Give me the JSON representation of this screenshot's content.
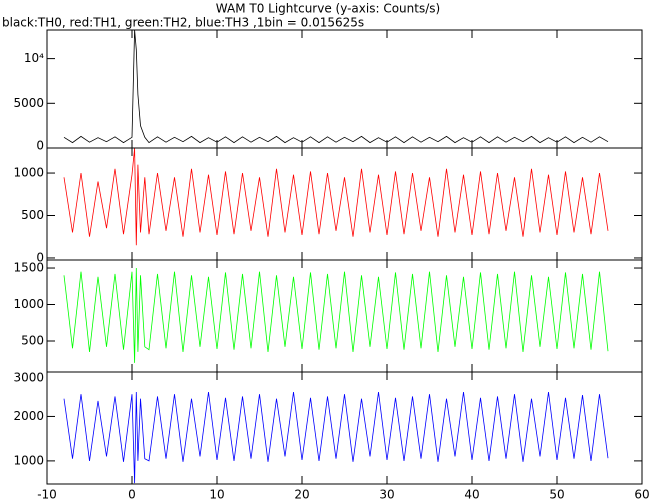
{
  "chart_data": {
    "type": "line",
    "title": "WAM T0 Lightcurve (y-axis: Counts/s)",
    "subtitle": "black:TH0, red:TH1, green:TH2, blue:TH3 ,1bin = 0.015625s",
    "xlim": [
      -10,
      60
    ],
    "xticks": [
      -10,
      0,
      10,
      20,
      30,
      40,
      50,
      60
    ],
    "x": [
      -8,
      -7,
      -6,
      -5,
      -4,
      -3,
      -2,
      -1,
      0,
      0.3,
      0.5,
      0.7,
      1,
      1.5,
      2,
      3,
      4,
      5,
      6,
      7,
      8,
      9,
      10,
      11,
      12,
      13,
      14,
      15,
      16,
      17,
      18,
      19,
      20,
      21,
      22,
      23,
      24,
      25,
      26,
      27,
      28,
      29,
      30,
      31,
      32,
      33,
      34,
      35,
      36,
      37,
      38,
      39,
      40,
      41,
      42,
      43,
      44,
      45,
      46,
      47,
      48,
      49,
      50,
      51,
      52,
      53,
      54,
      55,
      56
    ],
    "series": [
      {
        "color": "#000000",
        "ylim": [
          0,
          13200
        ],
        "yticks": [
          0,
          5000,
          {
            "value": 10000,
            "label": "10⁴"
          }
        ],
        "values": [
          1200,
          600,
          1300,
          650,
          1150,
          700,
          1250,
          600,
          1200,
          13200,
          11000,
          6000,
          2500,
          1200,
          600,
          1250,
          650,
          1200,
          700,
          1300,
          600,
          1150,
          650,
          1250,
          600,
          1250,
          650,
          1200,
          700,
          1300,
          600,
          1150,
          650,
          1250,
          600,
          1250,
          650,
          1200,
          700,
          1300,
          600,
          1150,
          650,
          1250,
          600,
          1250,
          650,
          1200,
          700,
          1300,
          600,
          1150,
          650,
          1250,
          600,
          1250,
          650,
          1200,
          700,
          1300,
          600,
          1150,
          650,
          1250,
          600,
          1200,
          650,
          1250,
          700
        ]
      },
      {
        "color": "#ff0000",
        "ylim": [
          -24,
          1295
        ],
        "yticks": [
          0,
          500,
          1000
        ],
        "values": [
          950,
          300,
          1000,
          250,
          900,
          350,
          1050,
          280,
          980,
          1290,
          150,
          1100,
          300,
          950,
          280,
          1000,
          320,
          950,
          250,
          1050,
          300,
          980,
          270,
          1020,
          280,
          1000,
          320,
          950,
          250,
          1050,
          300,
          980,
          270,
          1020,
          280,
          1000,
          320,
          950,
          250,
          1050,
          300,
          980,
          270,
          1020,
          280,
          1000,
          320,
          950,
          250,
          1050,
          300,
          980,
          270,
          1020,
          280,
          1000,
          320,
          950,
          250,
          1050,
          300,
          980,
          270,
          1020,
          300,
          950,
          280,
          1000,
          320
        ]
      },
      {
        "color": "#00ff00",
        "ylim": [
          75,
          1610
        ],
        "yticks": [
          500,
          1000,
          1500
        ],
        "values": [
          1400,
          400,
          1450,
          350,
          1380,
          420,
          1420,
          380,
          1450,
          200,
          1500,
          350,
          1400,
          420,
          380,
          1420,
          400,
          1450,
          350,
          1400,
          420,
          1380,
          390,
          1440,
          380,
          1420,
          400,
          1450,
          350,
          1400,
          420,
          1380,
          390,
          1440,
          380,
          1420,
          400,
          1450,
          350,
          1400,
          420,
          1380,
          390,
          1440,
          380,
          1420,
          400,
          1450,
          350,
          1400,
          420,
          1380,
          390,
          1440,
          380,
          1420,
          400,
          1450,
          350,
          1400,
          420,
          1380,
          390,
          1440,
          400,
          1420,
          380,
          1450,
          360
        ]
      },
      {
        "color": "#0000ff",
        "ylim": [
          480,
          3000
        ],
        "yticks": [
          1000,
          2000,
          3000
        ],
        "values": [
          2400,
          1050,
          2500,
          1000,
          2350,
          1100,
          2450,
          980,
          2500,
          500,
          2550,
          1000,
          2400,
          1050,
          1000,
          2450,
          1050,
          2500,
          980,
          2400,
          1100,
          2550,
          1020,
          2420,
          1000,
          2450,
          1050,
          2500,
          980,
          2400,
          1100,
          2550,
          1020,
          2420,
          1000,
          2450,
          1050,
          2500,
          980,
          2400,
          1100,
          2550,
          1020,
          2420,
          1000,
          2450,
          1050,
          2500,
          980,
          2400,
          1100,
          2550,
          1020,
          2420,
          1000,
          2450,
          1050,
          2500,
          980,
          2400,
          1100,
          2550,
          1020,
          2420,
          1050,
          2480,
          1000,
          2500,
          1060
        ]
      }
    ]
  }
}
